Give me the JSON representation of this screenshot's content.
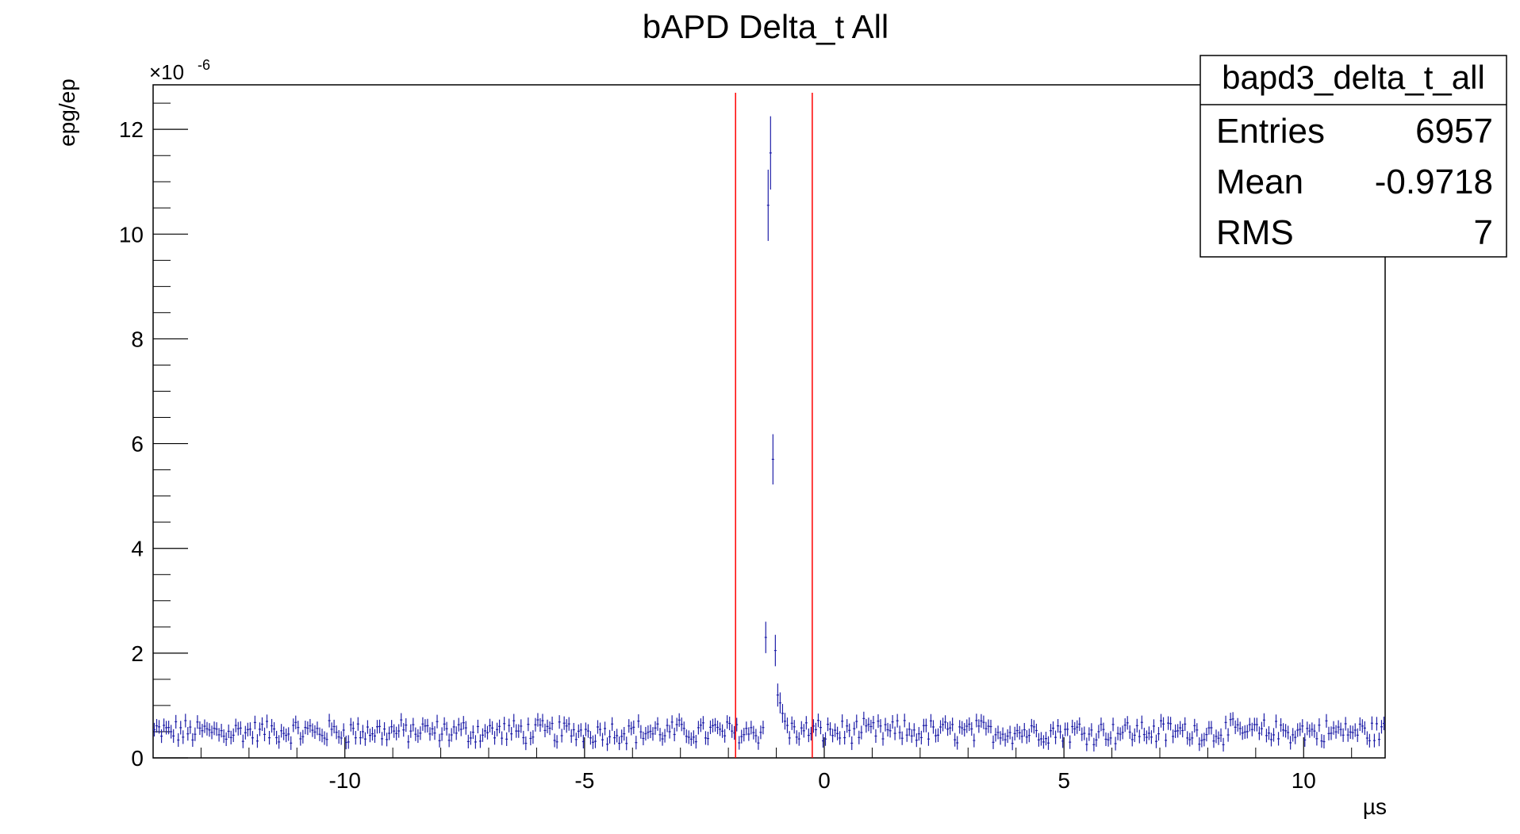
{
  "chart_data": {
    "type": "scatter",
    "title": "bAPD Delta_t All",
    "xlabel": "µs",
    "ylabel": "epg/ep",
    "y_multiplier": "×10",
    "y_multiplier_exp": "-6",
    "xlim": [
      -14,
      11.7
    ],
    "ylim": [
      0,
      12.85
    ],
    "x_ticks": [
      -10,
      -5,
      0,
      5,
      10
    ],
    "x_tick_labels": [
      "-10",
      "-5",
      "0",
      "5",
      "10"
    ],
    "y_ticks": [
      0,
      2,
      4,
      6,
      8,
      10,
      12
    ],
    "y_tick_labels": [
      "0",
      "2",
      "4",
      "6",
      "8",
      "10",
      "12"
    ],
    "grid": false,
    "legend": "none",
    "bin_width": 0.05,
    "baseline": {
      "x_from": -14,
      "x_to": 11.7,
      "mean": 0.5,
      "spread": 0.2,
      "error": 0.13
    },
    "series": [
      {
        "color": "#1f1fa8",
        "points": [
          {
            "x": -1.22,
            "y": 2.3,
            "err": 0.3
          },
          {
            "x": -1.17,
            "y": 10.55,
            "err": 0.68
          },
          {
            "x": -1.12,
            "y": 11.55,
            "err": 0.7
          },
          {
            "x": -1.07,
            "y": 5.7,
            "err": 0.48
          },
          {
            "x": -1.02,
            "y": 2.05,
            "err": 0.3
          },
          {
            "x": -0.97,
            "y": 1.2,
            "err": 0.22
          },
          {
            "x": -0.92,
            "y": 1.05,
            "err": 0.2
          },
          {
            "x": -0.87,
            "y": 0.85,
            "err": 0.18
          },
          {
            "x": -0.82,
            "y": 0.7,
            "err": 0.16
          },
          {
            "x": -0.77,
            "y": 0.62,
            "err": 0.15
          }
        ]
      }
    ],
    "cut_lines": [
      {
        "x": -1.85,
        "color": "#ff0000"
      },
      {
        "x": -0.25,
        "color": "#ff0000"
      }
    ],
    "stats_box": {
      "name": "bapd3_delta_t_all",
      "rows": [
        {
          "label": "Entries",
          "value": "6957"
        },
        {
          "label": "Mean",
          "value": "-0.9718"
        },
        {
          "label": "RMS",
          "value": "7"
        }
      ]
    }
  }
}
